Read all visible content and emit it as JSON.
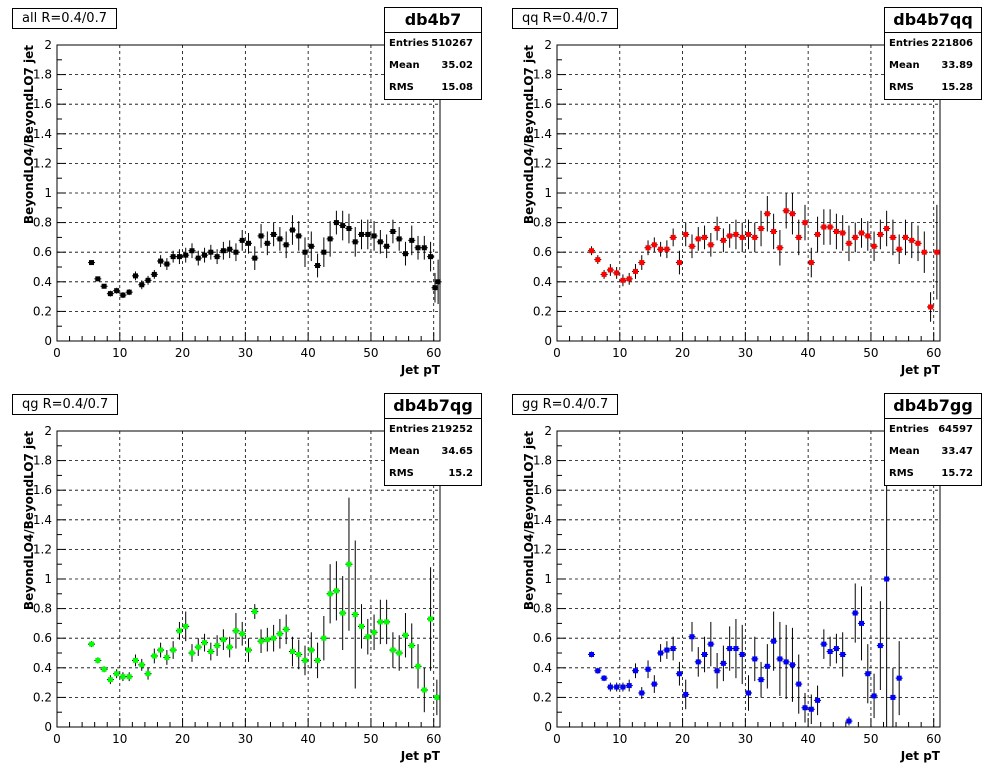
{
  "chart_data": [
    {
      "type": "scatter",
      "title": "all R=0.4/0.7",
      "hist_name": "db4b7",
      "stats": {
        "entries_label": "Entries",
        "entries": "510267",
        "mean_label": "Mean",
        "mean": "35.02",
        "rms_label": "RMS",
        "rms": "15.08"
      },
      "xlabel": "Jet pT",
      "ylabel": "BeyondLO4/BeyondLO7 jet",
      "xlim": [
        0,
        61
      ],
      "ylim": [
        0,
        2
      ],
      "grid": true,
      "x_ticks": [
        "0",
        "10",
        "20",
        "30",
        "40",
        "50",
        "60"
      ],
      "y_ticks": [
        "0",
        "0.2",
        "0.4",
        "0.6",
        "0.8",
        "1",
        "1.2",
        "1.4",
        "1.6",
        "1.8",
        "2"
      ],
      "color": "#000000",
      "points": [
        [
          5.5,
          0.53,
          0.01
        ],
        [
          6.5,
          0.42,
          0.015
        ],
        [
          7.5,
          0.37,
          0.015
        ],
        [
          8.5,
          0.32,
          0.02
        ],
        [
          9.5,
          0.34,
          0.02
        ],
        [
          10.5,
          0.31,
          0.02
        ],
        [
          11.5,
          0.33,
          0.02
        ],
        [
          12.5,
          0.44,
          0.03
        ],
        [
          13.5,
          0.38,
          0.03
        ],
        [
          14.5,
          0.41,
          0.03
        ],
        [
          15.5,
          0.45,
          0.03
        ],
        [
          16.5,
          0.54,
          0.04
        ],
        [
          17.5,
          0.52,
          0.04
        ],
        [
          18.5,
          0.57,
          0.04
        ],
        [
          19.5,
          0.57,
          0.05
        ],
        [
          20.5,
          0.58,
          0.05
        ],
        [
          21.5,
          0.61,
          0.05
        ],
        [
          22.5,
          0.56,
          0.05
        ],
        [
          23.5,
          0.58,
          0.05
        ],
        [
          24.5,
          0.6,
          0.05
        ],
        [
          25.5,
          0.57,
          0.05
        ],
        [
          26.5,
          0.61,
          0.06
        ],
        [
          27.5,
          0.62,
          0.06
        ],
        [
          28.5,
          0.6,
          0.06
        ],
        [
          29.5,
          0.68,
          0.07
        ],
        [
          30.5,
          0.66,
          0.07
        ],
        [
          31.5,
          0.56,
          0.08
        ],
        [
          32.5,
          0.71,
          0.08
        ],
        [
          33.5,
          0.66,
          0.08
        ],
        [
          34.5,
          0.72,
          0.08
        ],
        [
          35.5,
          0.69,
          0.08
        ],
        [
          36.5,
          0.65,
          0.09
        ],
        [
          37.5,
          0.75,
          0.1
        ],
        [
          38.5,
          0.71,
          0.1
        ],
        [
          39.5,
          0.6,
          0.1
        ],
        [
          40.5,
          0.64,
          0.1
        ],
        [
          41.5,
          0.51,
          0.08
        ],
        [
          42.5,
          0.6,
          0.1
        ],
        [
          43.5,
          0.69,
          0.12
        ],
        [
          44.5,
          0.8,
          0.08
        ],
        [
          45.5,
          0.78,
          0.1
        ],
        [
          46.5,
          0.76,
          0.1
        ],
        [
          47.5,
          0.67,
          0.1
        ],
        [
          48.5,
          0.72,
          0.1
        ],
        [
          49.5,
          0.72,
          0.1
        ],
        [
          50.5,
          0.71,
          0.1
        ],
        [
          51.5,
          0.67,
          0.08
        ],
        [
          52.5,
          0.64,
          0.08
        ],
        [
          53.5,
          0.74,
          0.08
        ],
        [
          54.5,
          0.69,
          0.08
        ],
        [
          55.5,
          0.59,
          0.08
        ],
        [
          56.5,
          0.68,
          0.1
        ],
        [
          57.5,
          0.63,
          0.08
        ],
        [
          58.5,
          0.63,
          0.08
        ],
        [
          59.5,
          0.57,
          0.1
        ],
        [
          60.2,
          0.36,
          0.1
        ],
        [
          60.7,
          0.4,
          0.15
        ]
      ]
    },
    {
      "type": "scatter",
      "title": "qq R=0.4/0.7",
      "hist_name": "db4b7qq",
      "stats": {
        "entries_label": "Entries",
        "entries": "221806",
        "mean_label": "Mean",
        "mean": "33.89",
        "rms_label": "RMS",
        "rms": "15.28"
      },
      "xlabel": "Jet pT",
      "ylabel": "BeyondLO4/BeyondLO7 jet",
      "xlim": [
        0,
        61
      ],
      "ylim": [
        0,
        2
      ],
      "grid": true,
      "x_ticks": [
        "0",
        "10",
        "20",
        "30",
        "40",
        "50",
        "60"
      ],
      "y_ticks": [
        "0",
        "0.2",
        "0.4",
        "0.6",
        "0.8",
        "1",
        "1.2",
        "1.4",
        "1.6",
        "1.8",
        "2"
      ],
      "color": "#ff0000",
      "points": [
        [
          5.5,
          0.61,
          0.03
        ],
        [
          6.5,
          0.55,
          0.03
        ],
        [
          7.5,
          0.45,
          0.03
        ],
        [
          8.5,
          0.48,
          0.04
        ],
        [
          9.5,
          0.46,
          0.04
        ],
        [
          10.5,
          0.41,
          0.04
        ],
        [
          11.5,
          0.42,
          0.04
        ],
        [
          12.5,
          0.47,
          0.05
        ],
        [
          13.5,
          0.53,
          0.05
        ],
        [
          14.5,
          0.63,
          0.05
        ],
        [
          15.5,
          0.65,
          0.05
        ],
        [
          16.5,
          0.62,
          0.05
        ],
        [
          17.5,
          0.62,
          0.06
        ],
        [
          18.5,
          0.7,
          0.06
        ],
        [
          19.5,
          0.53,
          0.08
        ],
        [
          20.5,
          0.72,
          0.08
        ],
        [
          21.5,
          0.64,
          0.08
        ],
        [
          22.5,
          0.69,
          0.08
        ],
        [
          23.5,
          0.7,
          0.08
        ],
        [
          24.5,
          0.65,
          0.08
        ],
        [
          25.5,
          0.76,
          0.08
        ],
        [
          26.5,
          0.68,
          0.08
        ],
        [
          27.5,
          0.71,
          0.08
        ],
        [
          28.5,
          0.72,
          0.1
        ],
        [
          29.5,
          0.7,
          0.1
        ],
        [
          30.5,
          0.72,
          0.1
        ],
        [
          31.5,
          0.7,
          0.1
        ],
        [
          32.5,
          0.76,
          0.12
        ],
        [
          33.5,
          0.86,
          0.12
        ],
        [
          34.5,
          0.74,
          0.12
        ],
        [
          35.5,
          0.63,
          0.12
        ],
        [
          36.5,
          0.88,
          0.12
        ],
        [
          37.5,
          0.86,
          0.14
        ],
        [
          38.5,
          0.7,
          0.12
        ],
        [
          39.5,
          0.8,
          0.12
        ],
        [
          40.5,
          0.53,
          0.1
        ],
        [
          41.5,
          0.72,
          0.12
        ],
        [
          42.5,
          0.77,
          0.12
        ],
        [
          43.5,
          0.77,
          0.12
        ],
        [
          44.5,
          0.74,
          0.12
        ],
        [
          45.5,
          0.73,
          0.12
        ],
        [
          46.5,
          0.66,
          0.12
        ],
        [
          47.5,
          0.7,
          0.1
        ],
        [
          48.5,
          0.73,
          0.1
        ],
        [
          49.5,
          0.71,
          0.1
        ],
        [
          50.5,
          0.64,
          0.1
        ],
        [
          51.5,
          0.72,
          0.1
        ],
        [
          52.5,
          0.76,
          0.12
        ],
        [
          53.5,
          0.7,
          0.12
        ],
        [
          54.5,
          0.62,
          0.1
        ],
        [
          55.5,
          0.7,
          0.12
        ],
        [
          56.5,
          0.68,
          0.12
        ],
        [
          57.5,
          0.66,
          0.12
        ],
        [
          58.5,
          0.6,
          0.14
        ],
        [
          59.5,
          0.23,
          0.1
        ],
        [
          60.5,
          0.6,
          0.32
        ]
      ]
    },
    {
      "type": "scatter",
      "title": "qg R=0.4/0.7",
      "hist_name": "db4b7qg",
      "stats": {
        "entries_label": "Entries",
        "entries": "219252",
        "mean_label": "Mean",
        "mean": "34.65",
        "rms_label": "RMS",
        "rms": "15.2"
      },
      "xlabel": "Jet pT",
      "ylabel": "BeyondLO4/BeyondLO7 jet",
      "xlim": [
        0,
        61
      ],
      "ylim": [
        0,
        2
      ],
      "grid": true,
      "x_ticks": [
        "0",
        "10",
        "20",
        "30",
        "40",
        "50",
        "60"
      ],
      "y_ticks": [
        "0",
        "0.2",
        "0.4",
        "0.6",
        "0.8",
        "1",
        "1.2",
        "1.4",
        "1.6",
        "1.8",
        "2"
      ],
      "color": "#00ff00",
      "points": [
        [
          5.5,
          0.56,
          0.02
        ],
        [
          6.5,
          0.45,
          0.02
        ],
        [
          7.5,
          0.39,
          0.02
        ],
        [
          8.5,
          0.32,
          0.03
        ],
        [
          9.5,
          0.36,
          0.03
        ],
        [
          10.5,
          0.34,
          0.03
        ],
        [
          11.5,
          0.34,
          0.03
        ],
        [
          12.5,
          0.45,
          0.04
        ],
        [
          13.5,
          0.42,
          0.04
        ],
        [
          14.5,
          0.36,
          0.04
        ],
        [
          15.5,
          0.48,
          0.05
        ],
        [
          16.5,
          0.52,
          0.05
        ],
        [
          17.5,
          0.47,
          0.05
        ],
        [
          18.5,
          0.52,
          0.06
        ],
        [
          19.5,
          0.65,
          0.06
        ],
        [
          20.5,
          0.68,
          0.1
        ],
        [
          21.5,
          0.5,
          0.06
        ],
        [
          22.5,
          0.54,
          0.06
        ],
        [
          23.5,
          0.57,
          0.06
        ],
        [
          24.5,
          0.51,
          0.06
        ],
        [
          25.5,
          0.55,
          0.07
        ],
        [
          26.5,
          0.59,
          0.07
        ],
        [
          27.5,
          0.54,
          0.07
        ],
        [
          28.5,
          0.65,
          0.12
        ],
        [
          29.5,
          0.63,
          0.08
        ],
        [
          30.5,
          0.52,
          0.08
        ],
        [
          31.5,
          0.78,
          0.05
        ],
        [
          32.5,
          0.58,
          0.08
        ],
        [
          33.5,
          0.59,
          0.08
        ],
        [
          34.5,
          0.6,
          0.09
        ],
        [
          35.5,
          0.63,
          0.1
        ],
        [
          36.5,
          0.66,
          0.1
        ],
        [
          37.5,
          0.51,
          0.1
        ],
        [
          38.5,
          0.49,
          0.1
        ],
        [
          39.5,
          0.45,
          0.1
        ],
        [
          40.5,
          0.52,
          0.12
        ],
        [
          41.5,
          0.45,
          0.12
        ],
        [
          42.5,
          0.6,
          0.15
        ],
        [
          43.5,
          0.9,
          0.2
        ],
        [
          44.5,
          0.92,
          0.2
        ],
        [
          45.5,
          0.77,
          0.25
        ],
        [
          46.5,
          1.1,
          0.45
        ],
        [
          47.5,
          0.76,
          0.5
        ],
        [
          48.5,
          0.68,
          0.15
        ],
        [
          49.5,
          0.61,
          0.12
        ],
        [
          50.5,
          0.64,
          0.12
        ],
        [
          51.5,
          0.71,
          0.15
        ],
        [
          52.5,
          0.71,
          0.15
        ],
        [
          53.5,
          0.52,
          0.12
        ],
        [
          54.5,
          0.5,
          0.12
        ],
        [
          55.5,
          0.62,
          0.15
        ],
        [
          56.5,
          0.55,
          0.15
        ],
        [
          57.5,
          0.41,
          0.15
        ],
        [
          58.5,
          0.25,
          0.15
        ],
        [
          59.5,
          0.73,
          0.35
        ],
        [
          60.5,
          0.2,
          0.12
        ]
      ]
    },
    {
      "type": "scatter",
      "title": "gg R=0.4/0.7",
      "hist_name": "db4b7gg",
      "stats": {
        "entries_label": "Entries",
        "entries": "64597",
        "mean_label": "Mean",
        "mean": "33.47",
        "rms_label": "RMS",
        "rms": "15.72"
      },
      "xlabel": "Jet pT",
      "ylabel": "BeyondLO4/BeyondLO7 jet",
      "xlim": [
        0,
        61
      ],
      "ylim": [
        0,
        2
      ],
      "grid": true,
      "x_ticks": [
        "0",
        "10",
        "20",
        "30",
        "40",
        "50",
        "60"
      ],
      "y_ticks": [
        "0",
        "0.2",
        "0.4",
        "0.6",
        "0.8",
        "1",
        "1.2",
        "1.4",
        "1.6",
        "1.8",
        "2"
      ],
      "color": "#0000ff",
      "points": [
        [
          5.5,
          0.49,
          0.02
        ],
        [
          6.5,
          0.38,
          0.02
        ],
        [
          7.5,
          0.33,
          0.02
        ],
        [
          8.5,
          0.27,
          0.03
        ],
        [
          9.5,
          0.27,
          0.03
        ],
        [
          10.5,
          0.27,
          0.03
        ],
        [
          11.5,
          0.28,
          0.04
        ],
        [
          12.5,
          0.38,
          0.05
        ],
        [
          13.5,
          0.23,
          0.04
        ],
        [
          14.5,
          0.39,
          0.06
        ],
        [
          15.5,
          0.29,
          0.06
        ],
        [
          16.5,
          0.5,
          0.06
        ],
        [
          17.5,
          0.52,
          0.06
        ],
        [
          18.5,
          0.53,
          0.08
        ],
        [
          19.5,
          0.36,
          0.08
        ],
        [
          20.5,
          0.22,
          0.1
        ],
        [
          21.5,
          0.61,
          0.1
        ],
        [
          22.5,
          0.44,
          0.1
        ],
        [
          23.5,
          0.49,
          0.12
        ],
        [
          24.5,
          0.56,
          0.15
        ],
        [
          25.5,
          0.38,
          0.12
        ],
        [
          26.5,
          0.43,
          0.12
        ],
        [
          27.5,
          0.53,
          0.15
        ],
        [
          28.5,
          0.53,
          0.2
        ],
        [
          29.5,
          0.49,
          0.2
        ],
        [
          30.5,
          0.23,
          0.12
        ],
        [
          31.5,
          0.46,
          0.15
        ],
        [
          32.5,
          0.32,
          0.12
        ],
        [
          33.5,
          0.41,
          0.15
        ],
        [
          34.5,
          0.58,
          0.2
        ],
        [
          35.5,
          0.46,
          0.25
        ],
        [
          36.5,
          0.44,
          0.25
        ],
        [
          37.5,
          0.42,
          0.25
        ],
        [
          38.5,
          0.29,
          0.2
        ],
        [
          39.5,
          0.13,
          0.1
        ],
        [
          40.5,
          0.12,
          0.1
        ],
        [
          41.5,
          0.18,
          0.1
        ],
        [
          42.5,
          0.56,
          0.1
        ],
        [
          43.5,
          0.51,
          0.1
        ],
        [
          44.5,
          0.53,
          0.1
        ],
        [
          45.5,
          0.49,
          0.15
        ],
        [
          46.5,
          0.04,
          0.03
        ],
        [
          47.5,
          0.77,
          0.2
        ],
        [
          48.5,
          0.7,
          0.25
        ],
        [
          49.5,
          0.36,
          0.2
        ],
        [
          50.5,
          0.21,
          0.15
        ],
        [
          51.5,
          0.55,
          0.3
        ],
        [
          52.5,
          1.0,
          1.0
        ],
        [
          53.5,
          0.2,
          0.2
        ],
        [
          54.5,
          0.33,
          0.25
        ]
      ]
    }
  ]
}
